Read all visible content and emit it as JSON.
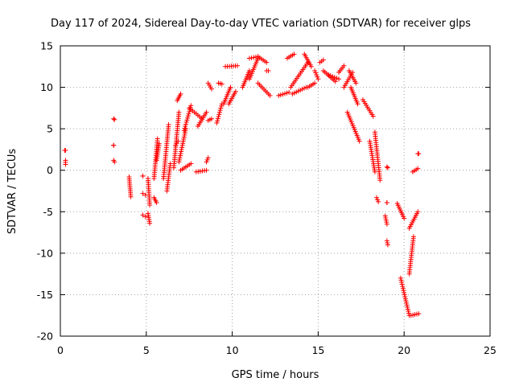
{
  "chart_data": {
    "type": "scatter",
    "title": "Day 117 of 2024, Sidereal Day-to-day VTEC variation (SDTVAR) for receiver glps",
    "xlabel": "GPS time / hours",
    "ylabel": "SDTVAR / TECUs",
    "xlim": [
      0,
      25
    ],
    "ylim": [
      -20,
      15
    ],
    "xticks": [
      0,
      5,
      10,
      15,
      20,
      25
    ],
    "yticks": [
      -20,
      -15,
      -10,
      -5,
      0,
      5,
      10,
      15
    ],
    "grid": true,
    "marker": "+",
    "color": "#ff0000",
    "arcs": [
      [
        0.25,
        2.4,
        0.3,
        2.4
      ],
      [
        0.3,
        1.2,
        0.3,
        0.7
      ],
      [
        3.1,
        6.2,
        3.15,
        6.1
      ],
      [
        3.1,
        3.0,
        3.1,
        3.0
      ],
      [
        3.1,
        1.2,
        3.15,
        1.0
      ],
      [
        4.0,
        -0.8,
        4.1,
        -3.2
      ],
      [
        4.8,
        -0.7,
        4.8,
        -0.7
      ],
      [
        4.8,
        -2.8,
        4.95,
        -3.0
      ],
      [
        4.8,
        -5.4,
        4.95,
        -5.6
      ],
      [
        5.1,
        -1.0,
        5.2,
        -4.2
      ],
      [
        5.1,
        -5.2,
        5.2,
        -6.4
      ],
      [
        5.45,
        -1.0,
        5.65,
        3.8
      ],
      [
        5.45,
        -3.3,
        5.6,
        -3.9
      ],
      [
        5.6,
        1.2,
        5.75,
        3.2
      ],
      [
        6.0,
        -1.0,
        6.3,
        5.5
      ],
      [
        6.2,
        -2.5,
        6.4,
        0.8
      ],
      [
        6.6,
        0.3,
        6.9,
        7.0
      ],
      [
        6.9,
        1.0,
        7.3,
        5.0
      ],
      [
        6.7,
        3.0,
        6.85,
        3.5
      ],
      [
        6.8,
        8.4,
        7.0,
        9.2
      ],
      [
        7.0,
        0.0,
        7.6,
        0.8
      ],
      [
        7.2,
        4.8,
        7.6,
        7.8
      ],
      [
        7.5,
        7.5,
        8.2,
        6.3
      ],
      [
        7.9,
        -0.2,
        8.5,
        0.0
      ],
      [
        8.0,
        5.3,
        8.5,
        7.0
      ],
      [
        8.5,
        1.0,
        8.6,
        1.5
      ],
      [
        8.6,
        10.5,
        8.8,
        9.8
      ],
      [
        8.6,
        6.0,
        8.8,
        6.2
      ],
      [
        9.1,
        5.7,
        9.4,
        8.0
      ],
      [
        9.2,
        10.5,
        9.4,
        10.4
      ],
      [
        9.5,
        8.0,
        9.9,
        10.0
      ],
      [
        9.6,
        12.5,
        10.3,
        12.6
      ],
      [
        9.8,
        8.0,
        10.2,
        9.5
      ],
      [
        10.6,
        10.0,
        11.0,
        12.0
      ],
      [
        11.0,
        11.0,
        11.5,
        13.5
      ],
      [
        11.0,
        13.5,
        11.5,
        13.7
      ],
      [
        11.5,
        13.7,
        12.0,
        13.0
      ],
      [
        11.5,
        10.5,
        12.2,
        9.0
      ],
      [
        12.0,
        12.0,
        12.1,
        12.0
      ],
      [
        12.7,
        9.0,
        13.3,
        9.4
      ],
      [
        13.2,
        13.5,
        13.6,
        14.0
      ],
      [
        13.4,
        10.0,
        14.4,
        13.0
      ],
      [
        13.5,
        9.2,
        14.3,
        10.0
      ],
      [
        14.2,
        14.0,
        14.6,
        12.5
      ],
      [
        14.4,
        10.0,
        14.8,
        10.5
      ],
      [
        14.8,
        12.0,
        15.0,
        11.0
      ],
      [
        15.1,
        13.0,
        15.3,
        13.3
      ],
      [
        15.3,
        12.0,
        16.0,
        10.7
      ],
      [
        15.6,
        11.5,
        16.2,
        11.0
      ],
      [
        16.2,
        11.8,
        16.5,
        12.6
      ],
      [
        16.5,
        10.0,
        17.0,
        11.8
      ],
      [
        16.8,
        12.0,
        17.2,
        10.5
      ],
      [
        16.7,
        7.0,
        17.4,
        3.5
      ],
      [
        16.9,
        10.0,
        17.3,
        8.0
      ],
      [
        17.6,
        8.5,
        18.2,
        6.5
      ],
      [
        18.0,
        3.5,
        18.3,
        -0.2
      ],
      [
        18.3,
        4.6,
        18.6,
        -1.2
      ],
      [
        18.4,
        -3.3,
        18.5,
        -3.8
      ],
      [
        19.0,
        -3.9,
        19.0,
        -3.9
      ],
      [
        18.9,
        -5.5,
        19.0,
        -6.5
      ],
      [
        19.0,
        0.4,
        19.05,
        0.3
      ],
      [
        19.0,
        -8.5,
        19.05,
        -9.0
      ],
      [
        19.6,
        -4.0,
        20.0,
        -5.8
      ],
      [
        19.8,
        -13.0,
        20.3,
        -17.5
      ],
      [
        20.3,
        -7.0,
        20.8,
        -5.0
      ],
      [
        20.3,
        -12.5,
        20.55,
        -8.0
      ],
      [
        20.4,
        -17.5,
        20.85,
        -17.3
      ],
      [
        20.5,
        -0.2,
        20.8,
        0.2
      ],
      [
        20.8,
        2.0,
        20.85,
        2.0
      ]
    ]
  }
}
